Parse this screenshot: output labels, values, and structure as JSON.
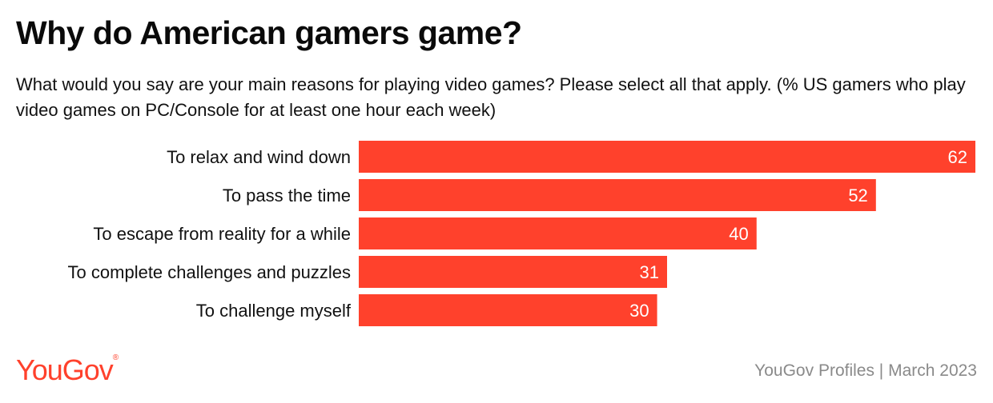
{
  "header": {
    "title": "Why do American gamers game?",
    "subtitle": "What would you say are your main reasons for playing video games? Please select all that apply. (% US gamers who play video games on PC/Console for at least one hour each week)"
  },
  "footer": {
    "logo_text": "YouGov",
    "logo_mark": "®",
    "source": "YouGov Profiles | March 2023"
  },
  "colors": {
    "bar": "#ff412c",
    "brand": "#ff412c",
    "source_text": "#8a8a8a"
  },
  "chart_data": {
    "type": "bar",
    "orientation": "horizontal",
    "categories": [
      "To relax and wind down",
      "To pass the time",
      "To escape from reality for a while",
      "To complete challenges and puzzles",
      "To challenge myself"
    ],
    "values": [
      62,
      52,
      40,
      31,
      30
    ],
    "xlim": [
      0,
      62
    ],
    "grid": false,
    "legend": "none",
    "data_labels": true
  }
}
